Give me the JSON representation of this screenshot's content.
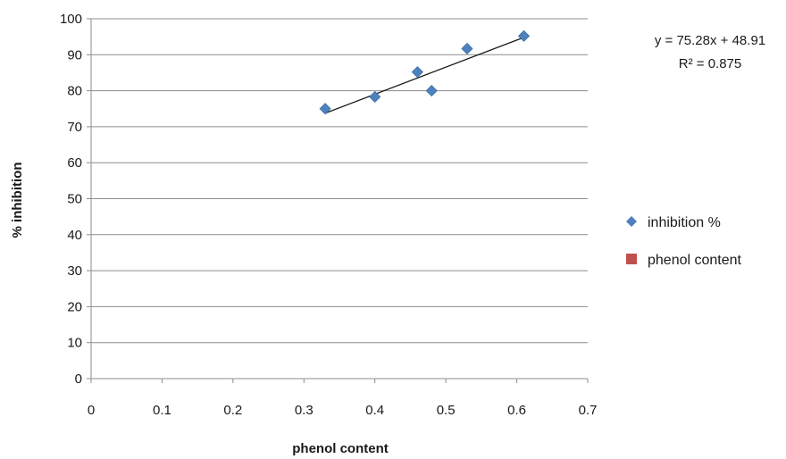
{
  "chart_data": {
    "type": "scatter",
    "xlabel": "phenol content",
    "ylabel": "% inhibition",
    "xlim": [
      0,
      0.7
    ],
    "ylim": [
      0,
      100
    ],
    "x_ticks": [
      "0",
      "0.1",
      "0.2",
      "0.3",
      "0.4",
      "0.5",
      "0.6",
      "0.7"
    ],
    "y_ticks": [
      "0",
      "10",
      "20",
      "30",
      "40",
      "50",
      "60",
      "70",
      "80",
      "90",
      "100"
    ],
    "grid": "horizontal",
    "legend_position": "right",
    "series": [
      {
        "name": "inhibition %",
        "marker": "diamond",
        "color": "#4f81bd",
        "points": [
          {
            "x": 0.33,
            "y": 75
          },
          {
            "x": 0.4,
            "y": 78.3
          },
          {
            "x": 0.46,
            "y": 85.2
          },
          {
            "x": 0.48,
            "y": 80
          },
          {
            "x": 0.53,
            "y": 91.7
          },
          {
            "x": 0.61,
            "y": 95.2
          }
        ]
      },
      {
        "name": "phenol content",
        "marker": "square",
        "color": "#c0504d",
        "points": []
      }
    ],
    "trendline": {
      "slope": 75.28,
      "intercept": 48.91,
      "x_range": [
        0.33,
        0.61
      ],
      "color": "#1a1a1a",
      "equation": "y = 75.28x + 48.91",
      "r_squared": "R² = 0.875"
    }
  }
}
